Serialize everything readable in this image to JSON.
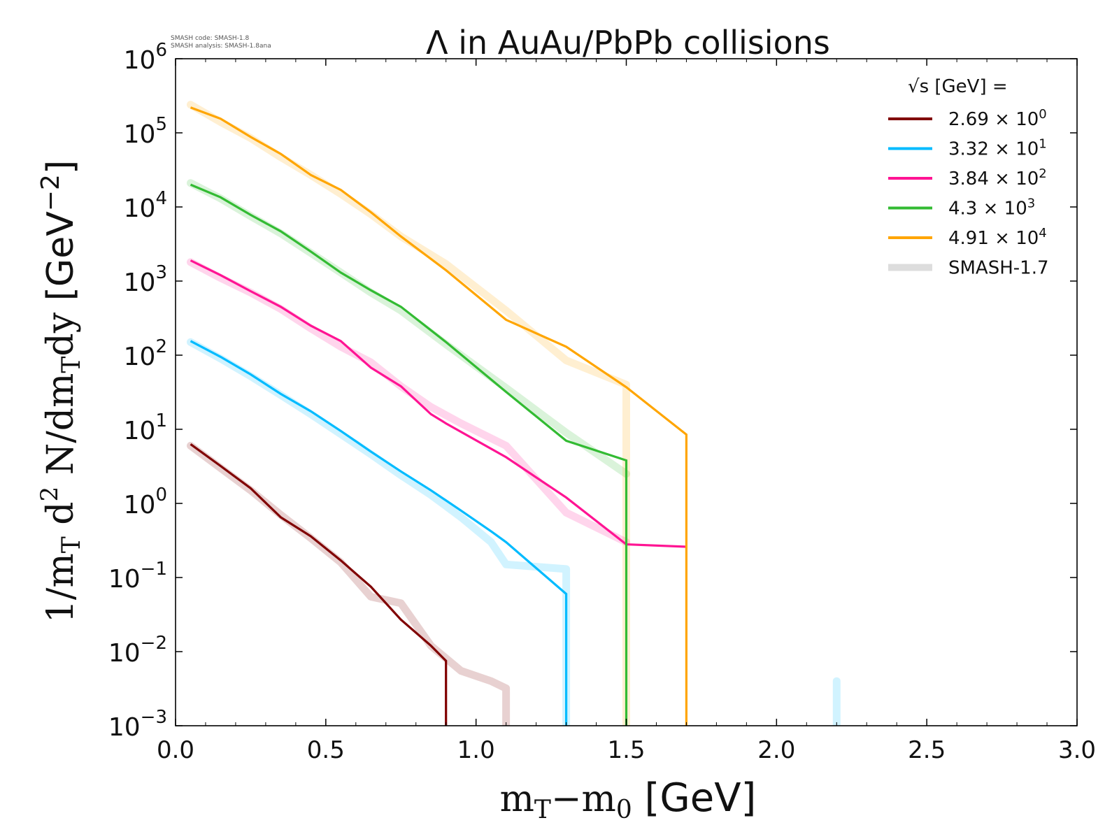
{
  "watermark": {
    "line1": "SMASH code:      SMASH-1.8",
    "line2": "SMASH analysis: SMASH-1.8ana"
  },
  "chart_data": {
    "type": "line",
    "title": "Λ in AuAu/PbPb collisions",
    "xlabel": "m_T−m_0 [GeV]",
    "ylabel": "1/m_T d^2 N/dm_T dy [GeV^−2]",
    "xlim": [
      0.0,
      3.0
    ],
    "ylim": [
      0.001,
      1000000
    ],
    "yscale": "log",
    "xticks": [
      "0.0",
      "0.5",
      "1.0",
      "1.5",
      "2.0",
      "2.5",
      "3.0"
    ],
    "yticks": [
      {
        "base": "10",
        "exp": "6"
      },
      {
        "base": "10",
        "exp": "5"
      },
      {
        "base": "10",
        "exp": "4"
      },
      {
        "base": "10",
        "exp": "3"
      },
      {
        "base": "10",
        "exp": "2"
      },
      {
        "base": "10",
        "exp": "1"
      },
      {
        "base": "10",
        "exp": "0"
      },
      {
        "base": "10",
        "exp": "−1"
      },
      {
        "base": "10",
        "exp": "−2"
      },
      {
        "base": "10",
        "exp": "−3"
      }
    ],
    "grid": false,
    "legend": {
      "placement": "top-right",
      "title": "√s  [GeV] ="
    },
    "series": [
      {
        "name": "2.69 × 10⁰",
        "label_main": "2.69",
        "label_times": " × 10",
        "label_exp": "0",
        "color": "#800000",
        "x": [
          0.05,
          0.15,
          0.25,
          0.35,
          0.45,
          0.55,
          0.65,
          0.75,
          0.85,
          0.9,
          0.9
        ],
        "y": [
          6.3,
          3.2,
          1.6,
          0.65,
          0.36,
          0.17,
          0.075,
          0.027,
          0.012,
          0.0075,
          0.001
        ]
      },
      {
        "name": "3.32 × 10¹",
        "label_main": "3.32",
        "label_times": " × 10",
        "label_exp": "1",
        "color": "#00bbff",
        "x": [
          0.05,
          0.15,
          0.25,
          0.35,
          0.45,
          0.55,
          0.65,
          0.75,
          0.85,
          0.95,
          1.05,
          1.1,
          1.3,
          1.3
        ],
        "y": [
          155,
          95,
          55,
          30,
          17.5,
          9.5,
          5,
          2.7,
          1.5,
          0.8,
          0.42,
          0.3,
          0.06,
          0.001
        ]
      },
      {
        "name": "3.84 × 10²",
        "label_main": "3.84",
        "label_times": " × 10",
        "label_exp": "2",
        "color": "#ff1493",
        "x": [
          0.05,
          0.15,
          0.25,
          0.35,
          0.45,
          0.55,
          0.65,
          0.75,
          0.85,
          0.9,
          1.1,
          1.3,
          1.5,
          1.7
        ],
        "y": [
          1900,
          1200,
          730,
          450,
          250,
          155,
          68,
          38,
          16,
          12,
          4.2,
          1.2,
          0.28,
          0.26
        ]
      },
      {
        "name": "4.3 × 10³",
        "label_main": "4.3",
        "label_times": " × 10",
        "label_exp": "3",
        "color": "#33bb33",
        "x": [
          0.05,
          0.15,
          0.25,
          0.35,
          0.45,
          0.55,
          0.65,
          0.75,
          0.9,
          1.1,
          1.3,
          1.5,
          1.5
        ],
        "y": [
          20000,
          13500,
          7800,
          4700,
          2500,
          1300,
          750,
          450,
          150,
          32,
          7,
          3.8,
          0.001
        ]
      },
      {
        "name": "4.91 × 10⁴",
        "label_main": "4.91",
        "label_times": " × 10",
        "label_exp": "4",
        "color": "#ffa500",
        "x": [
          0.05,
          0.15,
          0.25,
          0.35,
          0.45,
          0.55,
          0.65,
          0.75,
          0.9,
          1.1,
          1.3,
          1.5,
          1.7,
          1.7
        ],
        "y": [
          220000,
          155000,
          88000,
          52000,
          27000,
          17000,
          8500,
          4000,
          1400,
          300,
          130,
          37,
          8.5,
          0.001
        ]
      }
    ],
    "reference": {
      "name": "SMASH-1.7",
      "color": "#dddddd",
      "curves": [
        {
          "color": "#800000",
          "x": [
            0.05,
            0.15,
            0.25,
            0.35,
            0.45,
            0.55,
            0.65,
            0.75,
            0.85,
            0.95,
            1.05,
            1.1,
            1.1
          ],
          "y": [
            6.0,
            3.0,
            1.5,
            0.7,
            0.34,
            0.16,
            0.055,
            0.045,
            0.012,
            0.0055,
            0.004,
            0.0032,
            0.001
          ]
        },
        {
          "color": "#00bbff",
          "x": [
            0.05,
            0.15,
            0.25,
            0.35,
            0.45,
            0.55,
            0.65,
            0.75,
            0.85,
            0.95,
            1.05,
            1.1,
            1.3,
            1.3
          ],
          "y": [
            150,
            90,
            52,
            29,
            16,
            8.6,
            4.6,
            2.4,
            1.3,
            0.65,
            0.3,
            0.15,
            0.13,
            0.001
          ]
        },
        {
          "color": "#00bbff",
          "x": [
            2.2,
            2.2
          ],
          "y": [
            0.004,
            0.001
          ]
        },
        {
          "color": "#ff1493",
          "x": [
            0.05,
            0.15,
            0.25,
            0.35,
            0.45,
            0.55,
            0.65,
            0.75,
            0.85,
            0.95,
            1.1,
            1.3,
            1.5
          ],
          "y": [
            1800,
            1100,
            700,
            420,
            230,
            130,
            80,
            38,
            20,
            12,
            6,
            0.75,
            0.3
          ]
        },
        {
          "color": "#33bb33",
          "x": [
            0.05,
            0.15,
            0.25,
            0.35,
            0.45,
            0.55,
            0.65,
            0.75,
            0.9,
            1.1,
            1.3,
            1.5
          ],
          "y": [
            21000,
            13000,
            7500,
            4400,
            2400,
            1300,
            700,
            400,
            140,
            36,
            9,
            2.5
          ]
        },
        {
          "color": "#ffa500",
          "x": [
            0.05,
            0.15,
            0.25,
            0.35,
            0.45,
            0.55,
            0.65,
            0.75,
            0.9,
            1.1,
            1.3,
            1.5,
            1.5
          ],
          "y": [
            240000,
            140000,
            85000,
            47000,
            27000,
            15000,
            8000,
            4000,
            1700,
            400,
            85,
            40,
            0.001
          ]
        }
      ]
    }
  }
}
